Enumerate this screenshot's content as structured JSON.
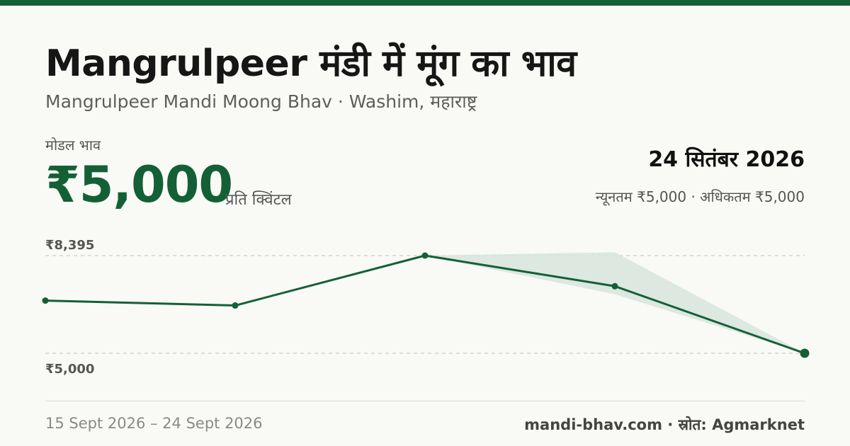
{
  "header": {
    "title": "Mangrulpeer मंडी में मूंग का भाव",
    "subtitle": "Mangrulpeer Mandi Moong Bhav · Washim, महाराष्ट्र"
  },
  "summary": {
    "metric_label": "मोडल भाव",
    "price": "₹5,000",
    "unit": "प्रति क्विंटल",
    "date": "24 सितंबर 2026",
    "range": "न्यूनतम ₹5,000 · अधिकतम ₹5,000"
  },
  "footer": {
    "date_range": "15 Sept 2026 – 24 Sept 2026",
    "attribution": "mandi-bhav.com · स्रोत: Agmarknet"
  },
  "colors": {
    "accent": "#146036",
    "band": "#d7e5dc",
    "background": "#f9f9f5"
  },
  "chart_data": {
    "type": "line",
    "ylim": [
      5000,
      8395
    ],
    "y_tick_labels": [
      "₹8,395",
      "₹5,000"
    ],
    "grid": true,
    "series": [
      {
        "values": [
          6830,
          6660,
          8395,
          7330,
          5000
        ]
      }
    ],
    "band": {
      "low": [
        6830,
        6660,
        8395,
        7050,
        5000
      ],
      "high": [
        6830,
        6660,
        8395,
        8510,
        5000
      ]
    }
  }
}
